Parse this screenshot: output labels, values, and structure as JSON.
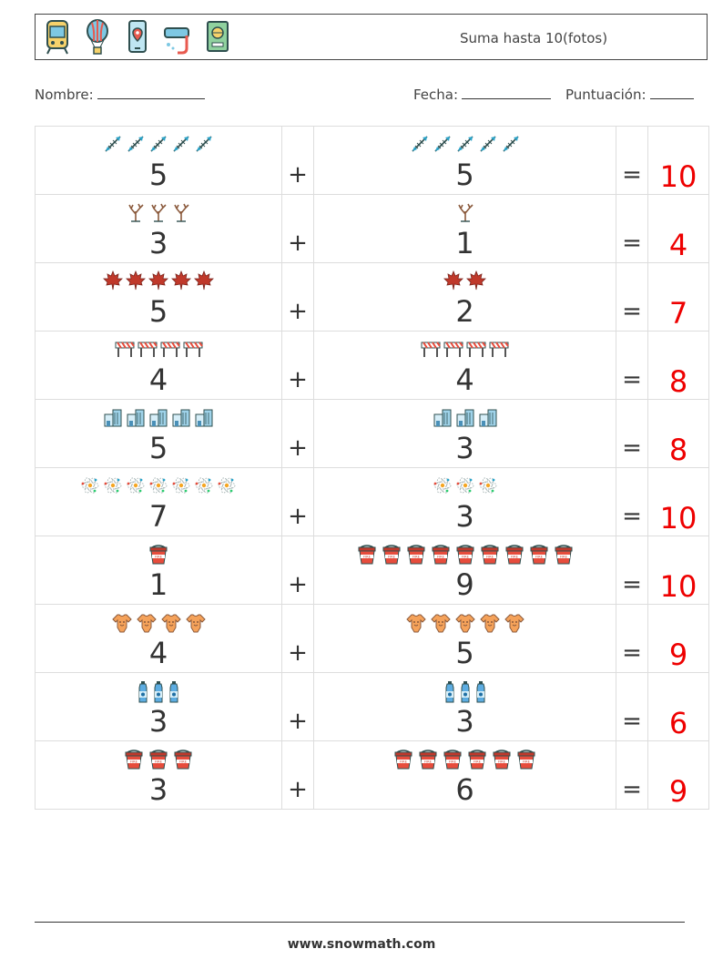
{
  "header": {
    "title": "Suma hasta 10(fotos)",
    "icons": [
      "tram-icon",
      "hot-air-balloon-icon",
      "phone-map-pin-icon",
      "snorkel-mask-icon",
      "passport-icon"
    ]
  },
  "meta": {
    "name_label": "Nombre:",
    "date_label": "Fecha:",
    "score_label": "Puntuación:"
  },
  "operators": {
    "plus": "+",
    "equals": "="
  },
  "rows": [
    {
      "left": {
        "count": 5,
        "value": "5",
        "icon": "fishbone-icon"
      },
      "right": {
        "count": 5,
        "value": "5",
        "icon": "fishbone-icon"
      },
      "answer": "10"
    },
    {
      "left": {
        "count": 3,
        "value": "3",
        "icon": "bare-tree-icon"
      },
      "right": {
        "count": 1,
        "value": "1",
        "icon": "bare-tree-icon"
      },
      "answer": "4"
    },
    {
      "left": {
        "count": 5,
        "value": "5",
        "icon": "maple-leaf-icon"
      },
      "right": {
        "count": 2,
        "value": "2",
        "icon": "maple-leaf-icon"
      },
      "answer": "7"
    },
    {
      "left": {
        "count": 4,
        "value": "4",
        "icon": "barrier-icon"
      },
      "right": {
        "count": 4,
        "value": "4",
        "icon": "barrier-icon"
      },
      "answer": "8"
    },
    {
      "left": {
        "count": 5,
        "value": "5",
        "icon": "office-building-icon"
      },
      "right": {
        "count": 3,
        "value": "3",
        "icon": "office-building-icon"
      },
      "answer": "8"
    },
    {
      "left": {
        "count": 7,
        "value": "7",
        "icon": "atom-icon"
      },
      "right": {
        "count": 3,
        "value": "3",
        "icon": "atom-icon"
      },
      "answer": "10"
    },
    {
      "left": {
        "count": 1,
        "value": "1",
        "icon": "fire-bucket-icon"
      },
      "right": {
        "count": 9,
        "value": "9",
        "icon": "fire-bucket-icon"
      },
      "answer": "10"
    },
    {
      "left": {
        "count": 4,
        "value": "4",
        "icon": "baby-bodysuit-icon"
      },
      "right": {
        "count": 5,
        "value": "5",
        "icon": "baby-bodysuit-icon"
      },
      "answer": "9"
    },
    {
      "left": {
        "count": 3,
        "value": "3",
        "icon": "water-bottle-icon"
      },
      "right": {
        "count": 3,
        "value": "3",
        "icon": "water-bottle-icon"
      },
      "answer": "6"
    },
    {
      "left": {
        "count": 3,
        "value": "3",
        "icon": "fire-bucket-icon"
      },
      "right": {
        "count": 6,
        "value": "6",
        "icon": "fire-bucket-icon"
      },
      "answer": "9"
    }
  ],
  "footer": {
    "url": "www.snowmath.com"
  },
  "colors": {
    "answer": "#ee0000",
    "text": "#333333",
    "grid": "#dddddd"
  }
}
